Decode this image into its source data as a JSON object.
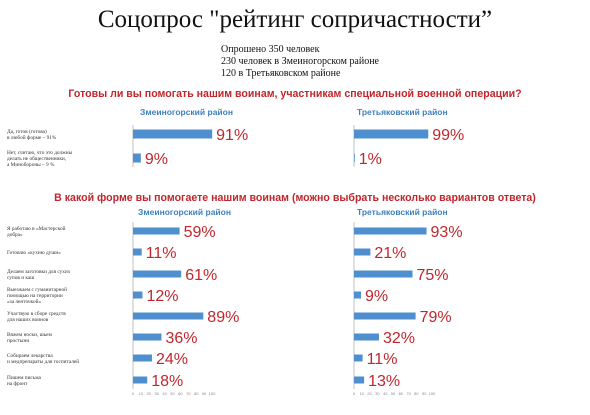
{
  "title": "Соцопрос \"рейтинг сопричастности”",
  "subtitle": [
    "Опрошено 350 человек",
    "230 человек в Змеиногорском районе",
    "120 в Третьяковском районе"
  ],
  "colors": {
    "bar": "#4f8fcf",
    "question": "#c0262d",
    "district": "#3f7fc1"
  },
  "chart_data": [
    {
      "type": "bar",
      "orientation": "horizontal",
      "title": "Готовы ли вы помогать нашим воинам, участникам специальной военной операции?",
      "categories": [
        [
          "Да, готов (готова)",
          "в любой форме – 91%"
        ],
        [
          "Нет, считаю, что это должны",
          "делать не общественники,",
          "а Минобороны – 9 %"
        ]
      ],
      "series": [
        {
          "name": "Змеиногорский район",
          "values": [
            91,
            9
          ],
          "labels": [
            "91%",
            "9%"
          ]
        },
        {
          "name": "Третьяковский район",
          "values": [
            99,
            1
          ],
          "labels": [
            "99%",
            "1%"
          ]
        }
      ],
      "xlim": [
        0,
        100
      ],
      "grid": false
    },
    {
      "type": "bar",
      "orientation": "horizontal",
      "title": "В какой форме вы помогаете нашим воинам (можно выбрать несколько вариантов ответа)",
      "categories": [
        [
          "Я работаю в «Мастерской",
          "добра»"
        ],
        [
          "Готовлю «кухню души»"
        ],
        [
          "Делаем заготовки для сухих",
          "супов и каш"
        ],
        [
          "Выезжаем с гуманитарной",
          "помощью на территории",
          "«за ленточкой»"
        ],
        [
          "Участвую в сборе средств",
          "для наших воинов"
        ],
        [
          "Вяжем носки, шьем",
          "простыни"
        ],
        [
          "Собираем лекарства",
          "и медпрепараты для госпиталей"
        ],
        [
          "Пишем письма",
          "на фронт"
        ]
      ],
      "series": [
        {
          "name": "Змеиногорский район",
          "values": [
            59,
            11,
            61,
            12,
            89,
            36,
            24,
            18
          ],
          "labels": [
            "59%",
            "11%",
            "61%",
            "12%",
            "89%",
            "36%",
            "24%",
            "18%"
          ]
        },
        {
          "name": "Третьяковский район",
          "values": [
            93,
            21,
            75,
            9,
            79,
            32,
            11,
            13
          ],
          "labels": [
            "93%",
            "21%",
            "75%",
            "9%",
            "79%",
            "32%",
            "11%",
            "13%"
          ]
        }
      ],
      "xlim": [
        0,
        100
      ],
      "ticks": [
        "0",
        "10",
        "20",
        "30",
        "40",
        "50",
        "60",
        "70",
        "80",
        "90",
        "100"
      ],
      "grid": false
    }
  ]
}
